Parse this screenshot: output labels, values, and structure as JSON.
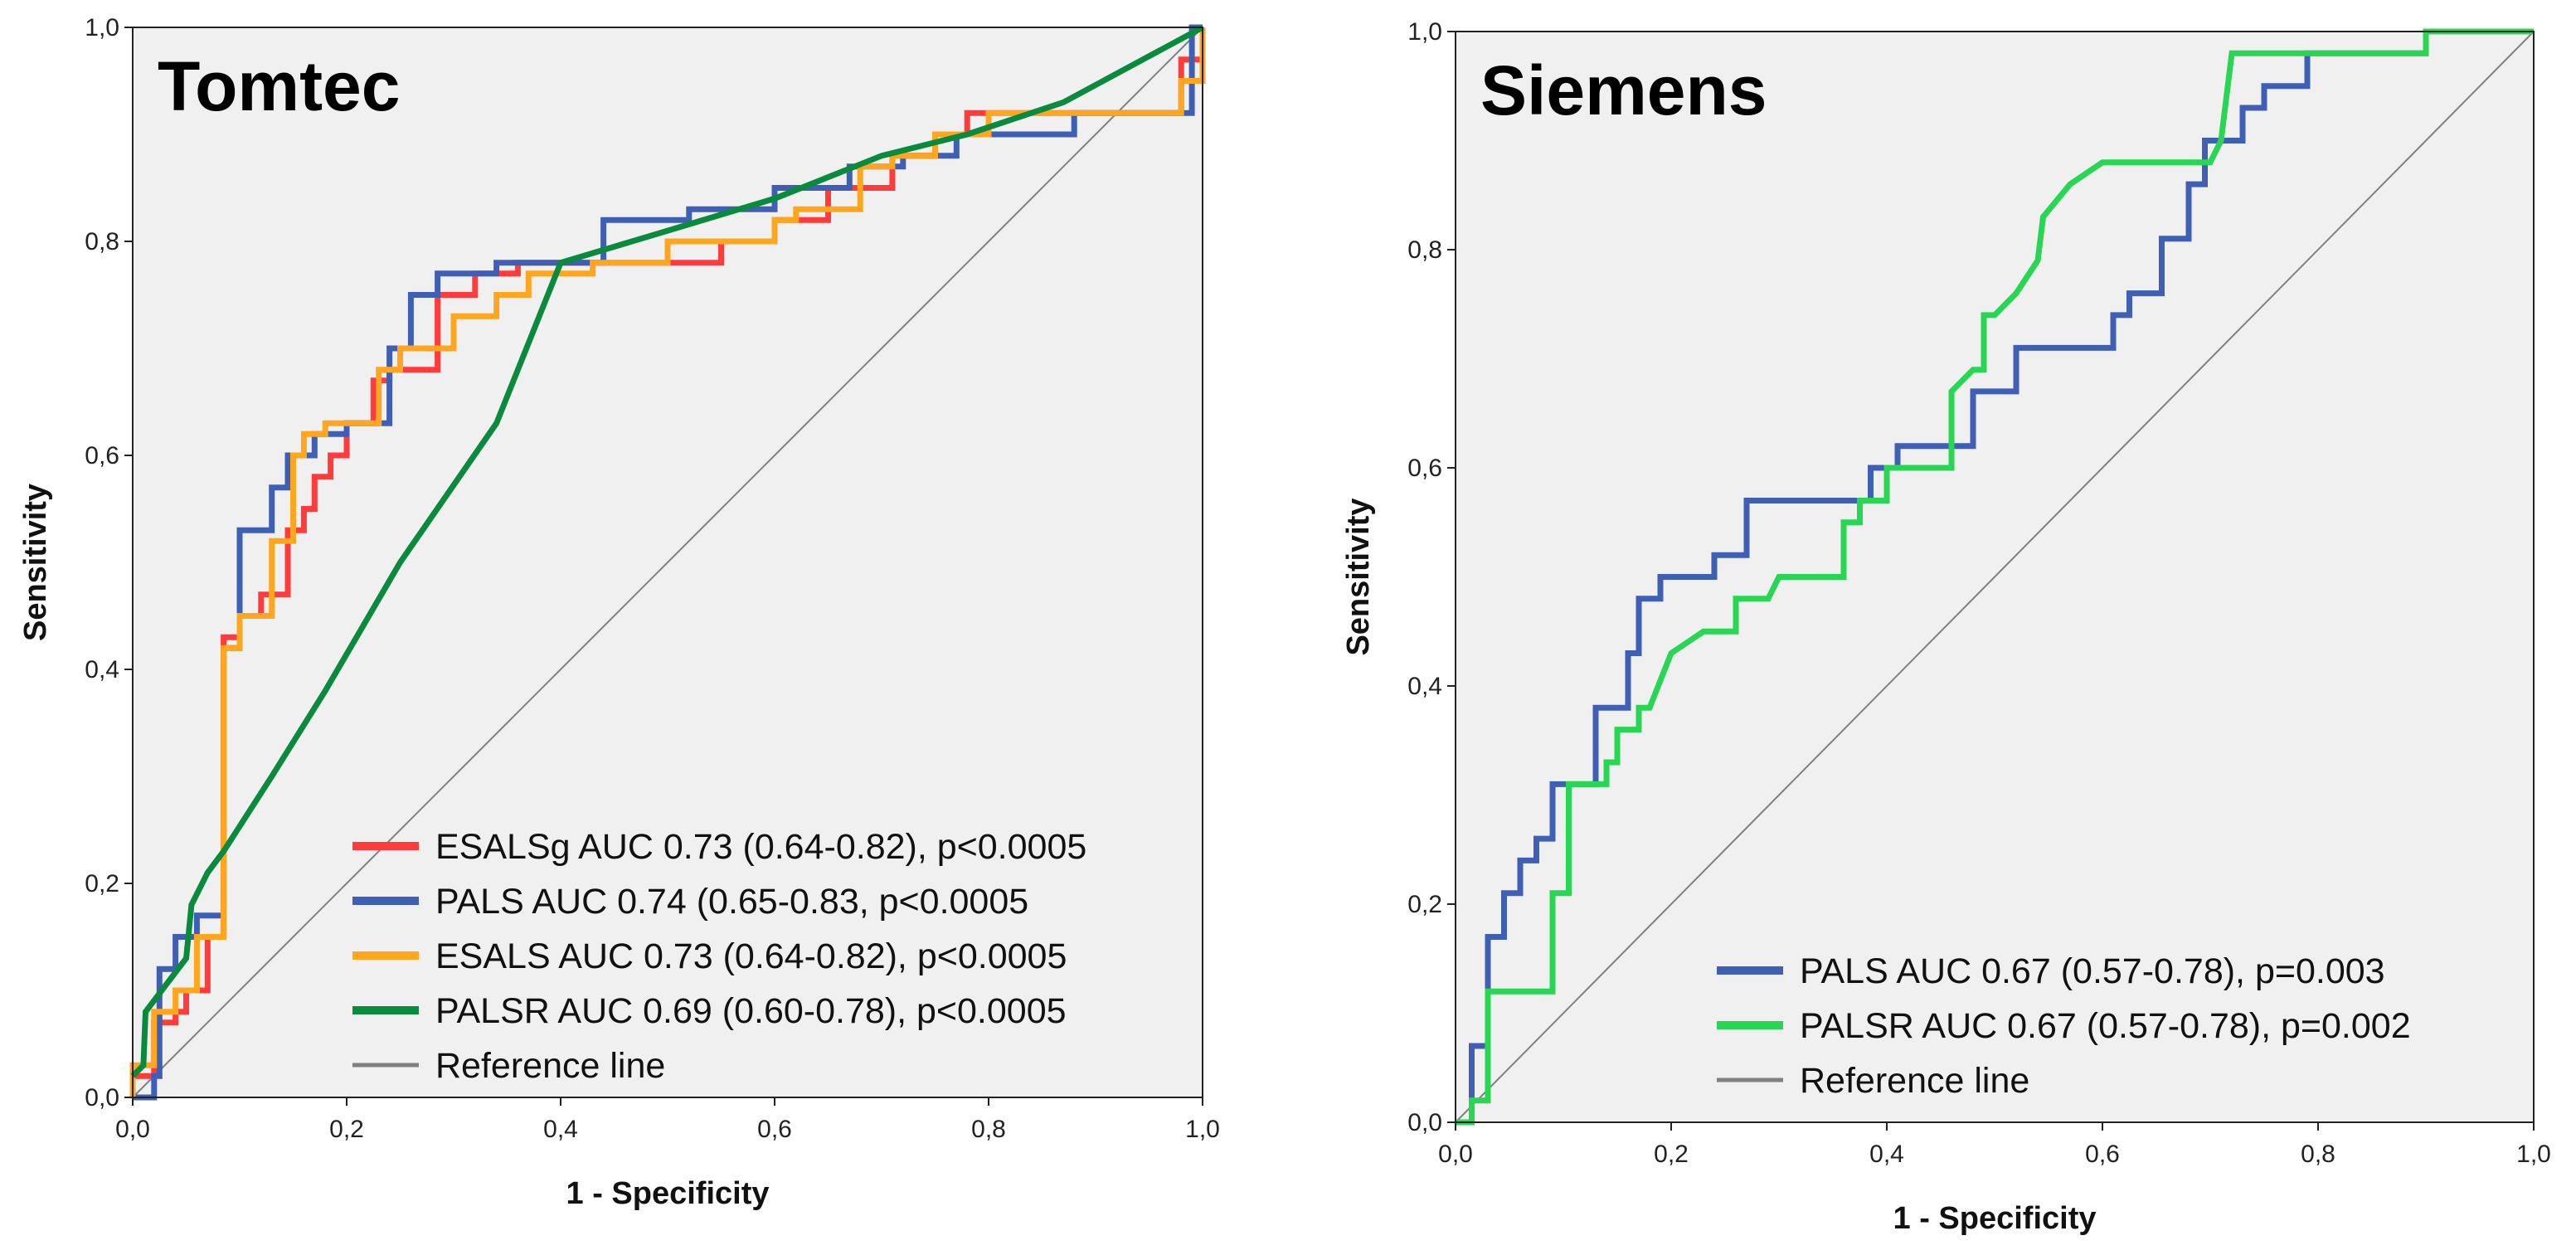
{
  "chart_data": [
    {
      "type": "line",
      "title": "Tomtec",
      "xlabel": "1 - Specificity",
      "ylabel": "Sensitivity",
      "xlim": [
        0,
        1
      ],
      "ylim": [
        0,
        1
      ],
      "x_ticks": [
        "0,0",
        "0,2",
        "0,4",
        "0,6",
        "0,8",
        "1,0"
      ],
      "y_ticks": [
        "0,0",
        "0,2",
        "0,4",
        "0,6",
        "0,8",
        "1,0"
      ],
      "legend_position": "bottom-right",
      "reference_line": {
        "label": "Reference line",
        "color": "#808080"
      },
      "series": [
        {
          "name": "ESALSg AUC 0.73 (0.64-0.82), p<0.0005",
          "color": "#ff3b3b",
          "points": [
            [
              0,
              0
            ],
            [
              0,
              0.02
            ],
            [
              0.02,
              0.02
            ],
            [
              0.02,
              0.07
            ],
            [
              0.04,
              0.07
            ],
            [
              0.04,
              0.08
            ],
            [
              0.05,
              0.08
            ],
            [
              0.05,
              0.1
            ],
            [
              0.07,
              0.1
            ],
            [
              0.07,
              0.15
            ],
            [
              0.085,
              0.15
            ],
            [
              0.085,
              0.43
            ],
            [
              0.1,
              0.43
            ],
            [
              0.1,
              0.45
            ],
            [
              0.12,
              0.45
            ],
            [
              0.12,
              0.47
            ],
            [
              0.145,
              0.47
            ],
            [
              0.145,
              0.53
            ],
            [
              0.16,
              0.53
            ],
            [
              0.16,
              0.55
            ],
            [
              0.17,
              0.55
            ],
            [
              0.17,
              0.58
            ],
            [
              0.185,
              0.58
            ],
            [
              0.185,
              0.6
            ],
            [
              0.2,
              0.6
            ],
            [
              0.2,
              0.63
            ],
            [
              0.225,
              0.63
            ],
            [
              0.225,
              0.67
            ],
            [
              0.24,
              0.67
            ],
            [
              0.24,
              0.68
            ],
            [
              0.285,
              0.68
            ],
            [
              0.285,
              0.75
            ],
            [
              0.32,
              0.75
            ],
            [
              0.32,
              0.77
            ],
            [
              0.36,
              0.77
            ],
            [
              0.36,
              0.78
            ],
            [
              0.55,
              0.78
            ],
            [
              0.55,
              0.8
            ],
            [
              0.6,
              0.8
            ],
            [
              0.6,
              0.82
            ],
            [
              0.65,
              0.82
            ],
            [
              0.65,
              0.85
            ],
            [
              0.71,
              0.85
            ],
            [
              0.71,
              0.88
            ],
            [
              0.75,
              0.88
            ],
            [
              0.75,
              0.9
            ],
            [
              0.78,
              0.9
            ],
            [
              0.78,
              0.92
            ],
            [
              0.98,
              0.92
            ],
            [
              0.98,
              0.97
            ],
            [
              1,
              0.97
            ],
            [
              1,
              1
            ]
          ]
        },
        {
          "name": "PALS AUC 0.74 (0.65-0.83, p<0.0005",
          "color": "#3f5fb5",
          "points": [
            [
              0,
              0
            ],
            [
              0.02,
              0
            ],
            [
              0.02,
              0.02
            ],
            [
              0.025,
              0.02
            ],
            [
              0.025,
              0.12
            ],
            [
              0.04,
              0.12
            ],
            [
              0.04,
              0.15
            ],
            [
              0.06,
              0.15
            ],
            [
              0.06,
              0.17
            ],
            [
              0.085,
              0.17
            ],
            [
              0.085,
              0.42
            ],
            [
              0.1,
              0.42
            ],
            [
              0.1,
              0.53
            ],
            [
              0.13,
              0.53
            ],
            [
              0.13,
              0.57
            ],
            [
              0.145,
              0.57
            ],
            [
              0.145,
              0.6
            ],
            [
              0.17,
              0.6
            ],
            [
              0.17,
              0.62
            ],
            [
              0.2,
              0.62
            ],
            [
              0.2,
              0.63
            ],
            [
              0.24,
              0.63
            ],
            [
              0.24,
              0.7
            ],
            [
              0.26,
              0.7
            ],
            [
              0.26,
              0.75
            ],
            [
              0.285,
              0.75
            ],
            [
              0.285,
              0.77
            ],
            [
              0.34,
              0.77
            ],
            [
              0.34,
              0.78
            ],
            [
              0.44,
              0.78
            ],
            [
              0.44,
              0.82
            ],
            [
              0.52,
              0.82
            ],
            [
              0.52,
              0.83
            ],
            [
              0.6,
              0.83
            ],
            [
              0.6,
              0.85
            ],
            [
              0.67,
              0.85
            ],
            [
              0.67,
              0.87
            ],
            [
              0.72,
              0.87
            ],
            [
              0.72,
              0.88
            ],
            [
              0.77,
              0.88
            ],
            [
              0.77,
              0.9
            ],
            [
              0.88,
              0.9
            ],
            [
              0.88,
              0.92
            ],
            [
              0.99,
              0.92
            ],
            [
              0.99,
              1
            ],
            [
              1,
              1
            ]
          ]
        },
        {
          "name": "ESALS AUC 0.73 (0.64-0.82), p<0.0005",
          "color": "#ffa621",
          "points": [
            [
              0,
              0
            ],
            [
              0,
              0.03
            ],
            [
              0.02,
              0.03
            ],
            [
              0.02,
              0.08
            ],
            [
              0.04,
              0.08
            ],
            [
              0.04,
              0.1
            ],
            [
              0.06,
              0.1
            ],
            [
              0.06,
              0.15
            ],
            [
              0.085,
              0.15
            ],
            [
              0.085,
              0.42
            ],
            [
              0.1,
              0.42
            ],
            [
              0.1,
              0.45
            ],
            [
              0.13,
              0.45
            ],
            [
              0.13,
              0.52
            ],
            [
              0.15,
              0.52
            ],
            [
              0.15,
              0.6
            ],
            [
              0.16,
              0.6
            ],
            [
              0.16,
              0.62
            ],
            [
              0.18,
              0.62
            ],
            [
              0.18,
              0.63
            ],
            [
              0.23,
              0.63
            ],
            [
              0.23,
              0.68
            ],
            [
              0.25,
              0.68
            ],
            [
              0.25,
              0.7
            ],
            [
              0.3,
              0.7
            ],
            [
              0.3,
              0.73
            ],
            [
              0.34,
              0.73
            ],
            [
              0.34,
              0.75
            ],
            [
              0.37,
              0.75
            ],
            [
              0.37,
              0.77
            ],
            [
              0.43,
              0.77
            ],
            [
              0.43,
              0.78
            ],
            [
              0.5,
              0.78
            ],
            [
              0.5,
              0.8
            ],
            [
              0.6,
              0.8
            ],
            [
              0.6,
              0.82
            ],
            [
              0.62,
              0.82
            ],
            [
              0.62,
              0.83
            ],
            [
              0.68,
              0.83
            ],
            [
              0.68,
              0.87
            ],
            [
              0.71,
              0.87
            ],
            [
              0.71,
              0.88
            ],
            [
              0.75,
              0.88
            ],
            [
              0.75,
              0.9
            ],
            [
              0.8,
              0.9
            ],
            [
              0.8,
              0.92
            ],
            [
              0.98,
              0.92
            ],
            [
              0.98,
              0.95
            ],
            [
              1,
              0.95
            ],
            [
              1,
              1
            ]
          ]
        },
        {
          "name": "PALSR AUC 0.69 (0.60-0.78), p<0.0005",
          "color": "#0a8a3c",
          "points": [
            [
              0,
              0.02
            ],
            [
              0.01,
              0.03
            ],
            [
              0.012,
              0.08
            ],
            [
              0.05,
              0.13
            ],
            [
              0.055,
              0.18
            ],
            [
              0.07,
              0.21
            ],
            [
              0.085,
              0.23
            ],
            [
              0.13,
              0.3
            ],
            [
              0.18,
              0.38
            ],
            [
              0.25,
              0.5
            ],
            [
              0.34,
              0.63
            ],
            [
              0.4,
              0.78
            ],
            [
              0.5,
              0.81
            ],
            [
              0.6,
              0.84
            ],
            [
              0.7,
              0.88
            ],
            [
              0.78,
              0.9
            ],
            [
              0.87,
              0.93
            ],
            [
              1,
              1
            ]
          ]
        }
      ]
    },
    {
      "type": "line",
      "title": "Siemens",
      "xlabel": "1 - Specificity",
      "ylabel": "Sensitivity",
      "xlim": [
        0,
        1
      ],
      "ylim": [
        0,
        1
      ],
      "x_ticks": [
        "0,0",
        "0,2",
        "0,4",
        "0,6",
        "0,8",
        "1,0"
      ],
      "y_ticks": [
        "0,0",
        "0,2",
        "0,4",
        "0,6",
        "0,8",
        "1,0"
      ],
      "legend_position": "bottom-right",
      "reference_line": {
        "label": "Reference line",
        "color": "#808080"
      },
      "series": [
        {
          "name": "PALS AUC 0.67 (0.57-0.78), p=0.003",
          "color": "#3f5fb5",
          "points": [
            [
              0,
              0
            ],
            [
              0.015,
              0
            ],
            [
              0.015,
              0.07
            ],
            [
              0.03,
              0.07
            ],
            [
              0.03,
              0.17
            ],
            [
              0.045,
              0.17
            ],
            [
              0.045,
              0.21
            ],
            [
              0.06,
              0.21
            ],
            [
              0.06,
              0.24
            ],
            [
              0.075,
              0.24
            ],
            [
              0.075,
              0.26
            ],
            [
              0.09,
              0.26
            ],
            [
              0.09,
              0.31
            ],
            [
              0.13,
              0.31
            ],
            [
              0.13,
              0.38
            ],
            [
              0.16,
              0.38
            ],
            [
              0.16,
              0.43
            ],
            [
              0.17,
              0.43
            ],
            [
              0.17,
              0.48
            ],
            [
              0.19,
              0.48
            ],
            [
              0.19,
              0.5
            ],
            [
              0.24,
              0.5
            ],
            [
              0.24,
              0.52
            ],
            [
              0.27,
              0.52
            ],
            [
              0.27,
              0.57
            ],
            [
              0.385,
              0.57
            ],
            [
              0.385,
              0.6
            ],
            [
              0.41,
              0.6
            ],
            [
              0.41,
              0.62
            ],
            [
              0.48,
              0.62
            ],
            [
              0.48,
              0.67
            ],
            [
              0.52,
              0.67
            ],
            [
              0.52,
              0.71
            ],
            [
              0.61,
              0.71
            ],
            [
              0.61,
              0.74
            ],
            [
              0.625,
              0.74
            ],
            [
              0.625,
              0.76
            ],
            [
              0.655,
              0.76
            ],
            [
              0.655,
              0.81
            ],
            [
              0.68,
              0.81
            ],
            [
              0.68,
              0.86
            ],
            [
              0.695,
              0.86
            ],
            [
              0.695,
              0.9
            ],
            [
              0.73,
              0.9
            ],
            [
              0.73,
              0.93
            ],
            [
              0.75,
              0.93
            ],
            [
              0.75,
              0.95
            ],
            [
              0.79,
              0.95
            ],
            [
              0.79,
              0.98
            ],
            [
              0.9,
              0.98
            ],
            [
              0.9,
              1
            ],
            [
              1,
              1
            ]
          ]
        },
        {
          "name": "PALSR AUC 0.67 (0.57-0.78), p=0.002",
          "color": "#29d653",
          "points": [
            [
              0,
              0
            ],
            [
              0.015,
              0
            ],
            [
              0.015,
              0.02
            ],
            [
              0.03,
              0.02
            ],
            [
              0.03,
              0.12
            ],
            [
              0.09,
              0.12
            ],
            [
              0.09,
              0.21
            ],
            [
              0.105,
              0.21
            ],
            [
              0.105,
              0.31
            ],
            [
              0.14,
              0.31
            ],
            [
              0.14,
              0.33
            ],
            [
              0.15,
              0.33
            ],
            [
              0.15,
              0.36
            ],
            [
              0.17,
              0.36
            ],
            [
              0.17,
              0.38
            ],
            [
              0.18,
              0.38
            ],
            [
              0.2,
              0.43
            ],
            [
              0.23,
              0.45
            ],
            [
              0.26,
              0.45
            ],
            [
              0.26,
              0.48
            ],
            [
              0.29,
              0.48
            ],
            [
              0.3,
              0.5
            ],
            [
              0.36,
              0.5
            ],
            [
              0.36,
              0.55
            ],
            [
              0.375,
              0.55
            ],
            [
              0.375,
              0.57
            ],
            [
              0.4,
              0.57
            ],
            [
              0.4,
              0.6
            ],
            [
              0.46,
              0.6
            ],
            [
              0.46,
              0.67
            ],
            [
              0.48,
              0.69
            ],
            [
              0.49,
              0.69
            ],
            [
              0.49,
              0.74
            ],
            [
              0.5,
              0.74
            ],
            [
              0.52,
              0.76
            ],
            [
              0.54,
              0.79
            ],
            [
              0.545,
              0.83
            ],
            [
              0.57,
              0.86
            ],
            [
              0.6,
              0.88
            ],
            [
              0.7,
              0.88
            ],
            [
              0.71,
              0.9
            ],
            [
              0.72,
              0.98
            ],
            [
              0.9,
              0.98
            ],
            [
              0.9,
              1
            ],
            [
              1,
              1
            ]
          ]
        }
      ]
    }
  ]
}
